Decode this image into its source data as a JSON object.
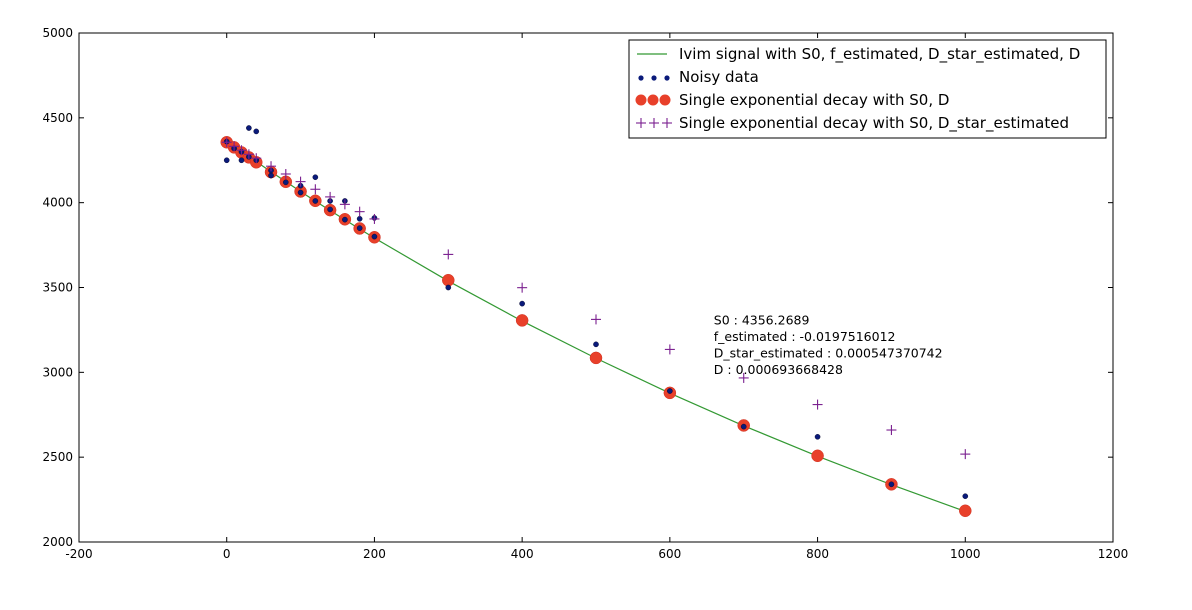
{
  "chart_data": {
    "type": "scatter",
    "xlim": [
      -200,
      1200
    ],
    "ylim": [
      2000,
      5000
    ],
    "xticks": [
      -200,
      0,
      200,
      400,
      600,
      800,
      1000,
      1200
    ],
    "yticks": [
      2000,
      2500,
      3000,
      3500,
      4000,
      4500,
      5000
    ],
    "grid": false,
    "legend_position": "top-right",
    "series": [
      {
        "name": "Ivim signal with S0, f_estimated, D_star_estimated, D",
        "style": "line",
        "color": "#339933",
        "x": [
          0,
          10,
          20,
          30,
          40,
          60,
          80,
          100,
          120,
          140,
          160,
          180,
          200,
          300,
          400,
          500,
          600,
          700,
          800,
          900,
          1000
        ],
        "y": [
          4356,
          4327,
          4298,
          4270,
          4242,
          4182,
          4124,
          4066,
          4009,
          3954,
          3899,
          3845,
          3792,
          3538,
          3302,
          3083,
          2877,
          2685,
          2506,
          2338,
          2180
        ]
      },
      {
        "name": "Noisy data",
        "style": "dots",
        "color": "#0a1a7a",
        "x": [
          0,
          0,
          10,
          20,
          20,
          30,
          30,
          40,
          40,
          60,
          60,
          80,
          100,
          100,
          120,
          120,
          140,
          140,
          160,
          160,
          180,
          180,
          200,
          200,
          300,
          400,
          500,
          600,
          700,
          800,
          900,
          1000
        ],
        "y": [
          4250,
          4360,
          4320,
          4250,
          4300,
          4440,
          4270,
          4420,
          4250,
          4160,
          4190,
          4120,
          4100,
          4060,
          4150,
          4010,
          4010,
          3960,
          4010,
          3900,
          3905,
          3850,
          3910,
          3800,
          3500,
          3405,
          3165,
          2890,
          2680,
          2620,
          2340,
          2270
        ]
      },
      {
        "name": "Single exponential decay with S0, D",
        "style": "big-circles",
        "color": "#e8402a",
        "x": [
          0,
          10,
          20,
          30,
          40,
          60,
          80,
          100,
          120,
          140,
          160,
          180,
          200,
          300,
          400,
          500,
          600,
          700,
          800,
          900,
          1000
        ],
        "y": [
          4356,
          4326,
          4296,
          4267,
          4238,
          4180,
          4123,
          4066,
          4011,
          3956,
          3902,
          3848,
          3796,
          3543,
          3306,
          3085,
          2879,
          2687,
          2508,
          2340,
          2184
        ]
      },
      {
        "name": "Single exponential decay with S0, D_star_estimated",
        "style": "plus",
        "color": "#7a1f8f",
        "x": [
          0,
          10,
          20,
          30,
          40,
          60,
          80,
          100,
          120,
          140,
          160,
          180,
          200,
          300,
          400,
          500,
          600,
          700,
          800,
          900,
          1000
        ],
        "y": [
          4356,
          4332,
          4309,
          4285,
          4262,
          4215,
          4169,
          4124,
          4079,
          4034,
          3990,
          3947,
          3904,
          3695,
          3499,
          3312,
          3135,
          2967,
          2810,
          2660,
          2518
        ]
      }
    ],
    "annotation": {
      "x": 650,
      "y": 3330,
      "lines": [
        "S0 : 4356.2689",
        "f_estimated : -0.0197516012",
        "D_star_estimated : 0.000547370742",
        "D : 0.000693668428"
      ]
    }
  }
}
